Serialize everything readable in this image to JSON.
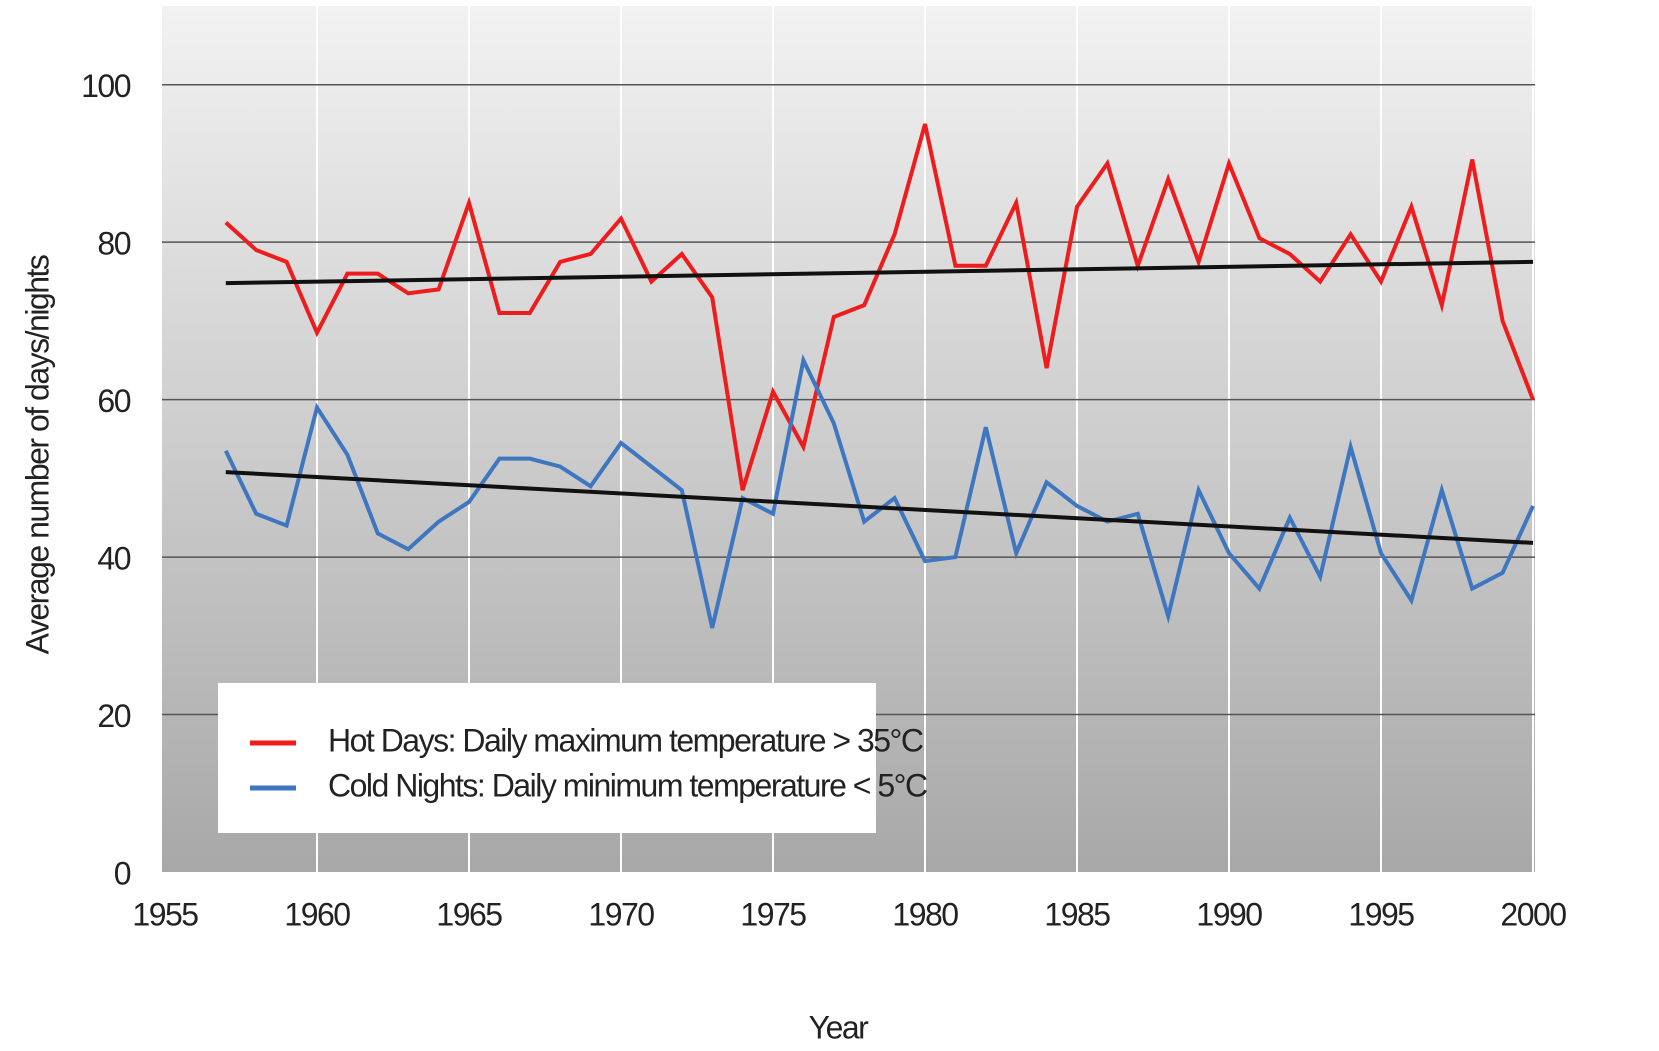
{
  "chart_data": {
    "type": "line",
    "x_label": "Year",
    "y_label": "Average number of days/nights",
    "x": [
      1957,
      1958,
      1959,
      1960,
      1961,
      1962,
      1963,
      1964,
      1965,
      1966,
      1967,
      1968,
      1969,
      1970,
      1971,
      1972,
      1973,
      1974,
      1975,
      1976,
      1977,
      1978,
      1979,
      1980,
      1981,
      1982,
      1983,
      1984,
      1985,
      1986,
      1987,
      1988,
      1989,
      1990,
      1991,
      1992,
      1993,
      1994,
      1995,
      1996,
      1997,
      1998,
      1999,
      2000
    ],
    "series": [
      {
        "name": "Hot Days:  Daily maximum temperature > 35°C",
        "color": "#ee1c1c",
        "values": [
          82.5,
          79,
          77.5,
          68.5,
          76,
          76,
          73.5,
          74,
          85,
          71,
          71,
          77.5,
          78.5,
          83,
          75,
          78.5,
          73,
          48.5,
          61,
          54,
          70.5,
          72,
          81,
          95,
          77,
          77,
          85,
          64,
          84.5,
          90,
          77,
          88,
          77.5,
          90,
          80.5,
          78.5,
          75,
          81,
          75,
          84.5,
          72,
          90.5,
          70,
          60
        ]
      },
      {
        "name": "Cold Nights:  Daily minimum temperature < 5°C",
        "color": "#3f76c0",
        "values": [
          53.5,
          45.5,
          44,
          59,
          53,
          43,
          41,
          44.5,
          47,
          52.5,
          52.5,
          51.5,
          49,
          54.5,
          51.5,
          48.5,
          31,
          47.5,
          45.5,
          65,
          57,
          44.5,
          47.5,
          39.5,
          40,
          56.5,
          40.5,
          49.5,
          46.5,
          44.5,
          45.5,
          32.5,
          48.5,
          40.5,
          36,
          45,
          37.5,
          54,
          40.5,
          34.5,
          48.5,
          36,
          38,
          46.5
        ]
      }
    ],
    "trend_lines": [
      {
        "color": "#111111",
        "x": [
          1957,
          2000
        ],
        "values": [
          74.8,
          77.5
        ]
      },
      {
        "color": "#111111",
        "x": [
          1957,
          2000
        ],
        "values": [
          50.8,
          41.8
        ]
      }
    ],
    "xlim": [
      1955,
      2000
    ],
    "xticks": [
      1955,
      1960,
      1965,
      1970,
      1975,
      1980,
      1985,
      1990,
      1995,
      2000
    ],
    "ylim": [
      0,
      110
    ],
    "yticks": [
      0,
      20,
      40,
      60,
      80,
      100
    ],
    "grid": true,
    "legend": "lower left"
  }
}
